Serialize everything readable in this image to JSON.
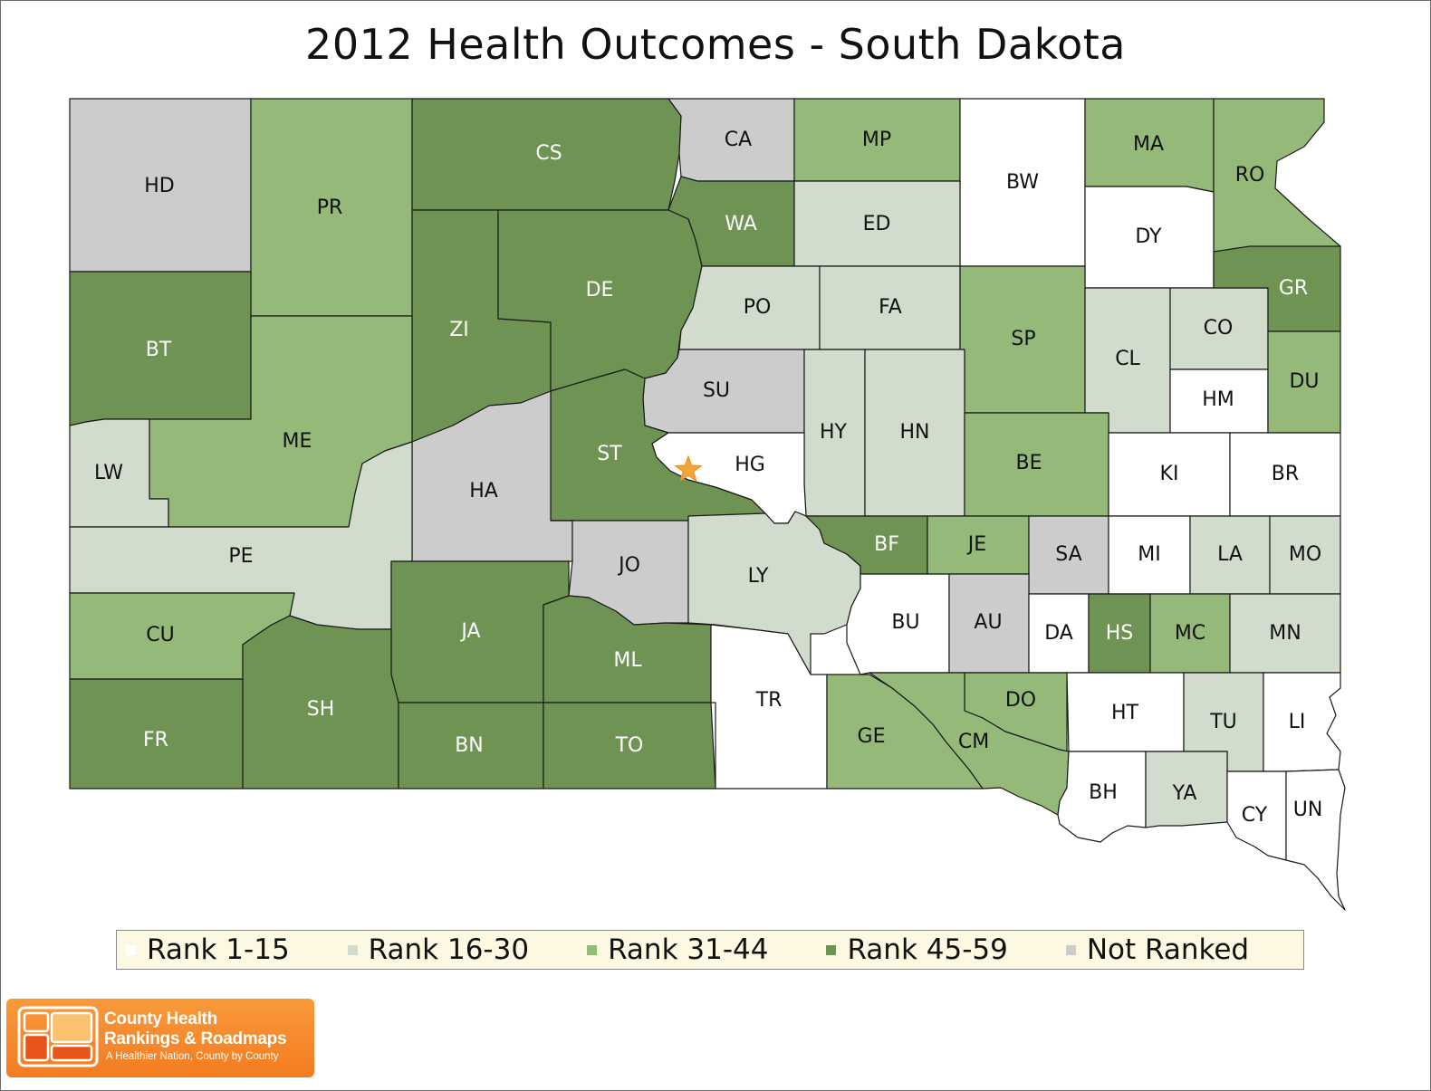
{
  "title": "2012 Health Outcomes - South Dakota",
  "colors": {
    "rank_1_15": "#ffffff",
    "rank_16_30": "#d1dccd",
    "rank_31_44": "#95b978",
    "rank_45_59": "#6e9353",
    "not_ranked": "#cccccc"
  },
  "legend": [
    {
      "label": "Rank 1-15",
      "class": "rank_1_15"
    },
    {
      "label": "Rank 16-30",
      "class": "rank_16_30"
    },
    {
      "label": "Rank 31-44",
      "class": "rank_31_44"
    },
    {
      "label": "Rank 45-59",
      "class": "rank_45_59"
    },
    {
      "label": "Not Ranked",
      "class": "not_ranked"
    }
  ],
  "capital_marker": "star-icon",
  "counties": [
    {
      "code": "HD",
      "class": "not_ranked"
    },
    {
      "code": "PR",
      "class": "rank_31_44"
    },
    {
      "code": "CS",
      "class": "rank_45_59"
    },
    {
      "code": "CA",
      "class": "not_ranked"
    },
    {
      "code": "MP",
      "class": "rank_31_44"
    },
    {
      "code": "BW",
      "class": "rank_1_15"
    },
    {
      "code": "MA",
      "class": "rank_31_44"
    },
    {
      "code": "RO",
      "class": "rank_31_44"
    },
    {
      "code": "WA",
      "class": "rank_45_59"
    },
    {
      "code": "ED",
      "class": "rank_16_30"
    },
    {
      "code": "DY",
      "class": "rank_1_15"
    },
    {
      "code": "BT",
      "class": "rank_45_59"
    },
    {
      "code": "ZI",
      "class": "rank_45_59"
    },
    {
      "code": "DE",
      "class": "rank_45_59"
    },
    {
      "code": "PO",
      "class": "rank_16_30"
    },
    {
      "code": "FA",
      "class": "rank_16_30"
    },
    {
      "code": "SP",
      "class": "rank_31_44"
    },
    {
      "code": "CL",
      "class": "rank_16_30"
    },
    {
      "code": "CO",
      "class": "rank_16_30"
    },
    {
      "code": "GR",
      "class": "rank_45_59"
    },
    {
      "code": "ME",
      "class": "rank_31_44"
    },
    {
      "code": "SU",
      "class": "not_ranked"
    },
    {
      "code": "HM",
      "class": "rank_1_15"
    },
    {
      "code": "DU",
      "class": "rank_31_44"
    },
    {
      "code": "LW",
      "class": "rank_16_30"
    },
    {
      "code": "ST",
      "class": "rank_45_59"
    },
    {
      "code": "HY",
      "class": "rank_16_30"
    },
    {
      "code": "HN",
      "class": "rank_16_30"
    },
    {
      "code": "HG",
      "class": "rank_1_15"
    },
    {
      "code": "BE",
      "class": "rank_31_44"
    },
    {
      "code": "KI",
      "class": "rank_1_15"
    },
    {
      "code": "BR",
      "class": "rank_1_15"
    },
    {
      "code": "HA",
      "class": "not_ranked"
    },
    {
      "code": "PE",
      "class": "rank_16_30"
    },
    {
      "code": "JO",
      "class": "not_ranked"
    },
    {
      "code": "LY",
      "class": "rank_16_30"
    },
    {
      "code": "BF",
      "class": "rank_45_59"
    },
    {
      "code": "JE",
      "class": "rank_31_44"
    },
    {
      "code": "SA",
      "class": "not_ranked"
    },
    {
      "code": "MI",
      "class": "rank_1_15"
    },
    {
      "code": "LA",
      "class": "rank_16_30"
    },
    {
      "code": "MO",
      "class": "rank_16_30"
    },
    {
      "code": "CU",
      "class": "rank_31_44"
    },
    {
      "code": "JA",
      "class": "rank_45_59"
    },
    {
      "code": "ML",
      "class": "rank_45_59"
    },
    {
      "code": "BU",
      "class": "rank_1_15"
    },
    {
      "code": "AU",
      "class": "not_ranked"
    },
    {
      "code": "DA",
      "class": "rank_1_15"
    },
    {
      "code": "HS",
      "class": "rank_45_59"
    },
    {
      "code": "MC",
      "class": "rank_31_44"
    },
    {
      "code": "MN",
      "class": "rank_16_30"
    },
    {
      "code": "SH",
      "class": "rank_45_59"
    },
    {
      "code": "TR",
      "class": "rank_1_15"
    },
    {
      "code": "DO",
      "class": "rank_31_44"
    },
    {
      "code": "HT",
      "class": "rank_1_15"
    },
    {
      "code": "TU",
      "class": "rank_16_30"
    },
    {
      "code": "LI",
      "class": "rank_1_15"
    },
    {
      "code": "FR",
      "class": "rank_45_59"
    },
    {
      "code": "BN",
      "class": "rank_45_59"
    },
    {
      "code": "TO",
      "class": "rank_45_59"
    },
    {
      "code": "GE",
      "class": "rank_31_44"
    },
    {
      "code": "CM",
      "class": "rank_31_44"
    },
    {
      "code": "BH",
      "class": "rank_1_15"
    },
    {
      "code": "YA",
      "class": "rank_16_30"
    },
    {
      "code": "CY",
      "class": "rank_1_15"
    },
    {
      "code": "UN",
      "class": "rank_1_15"
    }
  ],
  "logo": {
    "line1": "County Health",
    "line2": "Rankings & Roadmaps",
    "tagline": "A Healthier Nation, County by County"
  }
}
